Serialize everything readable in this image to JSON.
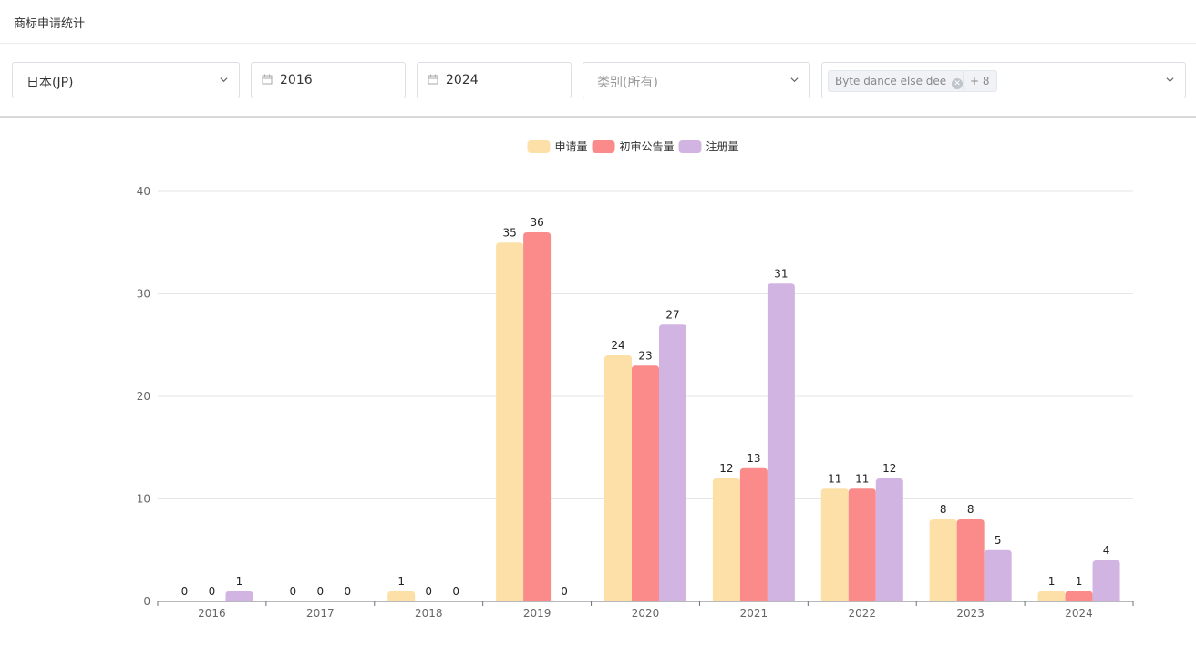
{
  "header": {
    "title": "商标申请统计"
  },
  "filters": {
    "country": "日本(JP)",
    "start_year": "2016",
    "end_year": "2024",
    "category_placeholder": "类别(所有)",
    "applicant_tag": "Byte dance else dee",
    "more_tag": "+ 8"
  },
  "colors": {
    "applications": "#fce0a8",
    "preliminary": "#fb8a8a",
    "registrations": "#d2b4e2"
  },
  "chart_data": {
    "type": "bar",
    "categories": [
      "2016",
      "2017",
      "2018",
      "2019",
      "2020",
      "2021",
      "2022",
      "2023",
      "2024"
    ],
    "series": [
      {
        "name": "申请量",
        "values": [
          0,
          0,
          1,
          35,
          24,
          12,
          11,
          8,
          1
        ]
      },
      {
        "name": "初审公告量",
        "values": [
          0,
          0,
          0,
          36,
          23,
          13,
          11,
          8,
          1
        ]
      },
      {
        "name": "注册量",
        "values": [
          1,
          0,
          0,
          0,
          27,
          31,
          12,
          5,
          4
        ]
      }
    ],
    "ylim": [
      0,
      40
    ],
    "yticks": [
      0,
      10,
      20,
      30,
      40
    ],
    "grid": true,
    "legend": "top-center"
  }
}
